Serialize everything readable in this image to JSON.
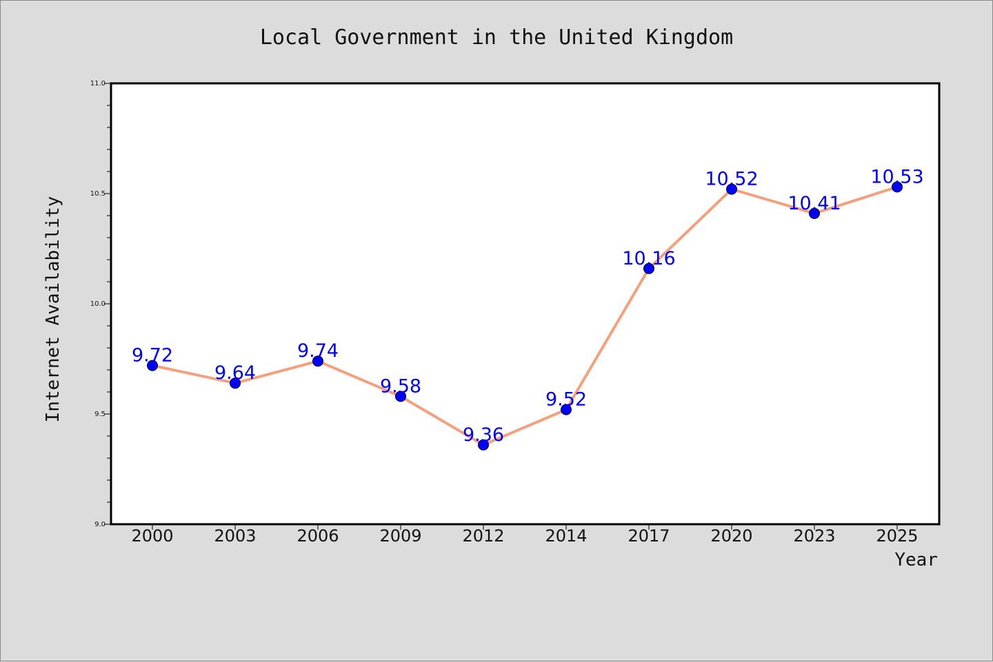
{
  "chart_data": {
    "type": "line",
    "title": "Local Government in the United Kingdom",
    "xlabel": "Year",
    "ylabel": "Internet Availability",
    "categories": [
      "2000",
      "2003",
      "2006",
      "2009",
      "2012",
      "2014",
      "2017",
      "2020",
      "2023",
      "2025"
    ],
    "values": [
      9.72,
      9.64,
      9.74,
      9.58,
      9.36,
      9.52,
      10.16,
      10.52,
      10.41,
      10.53
    ],
    "data_labels": [
      "9.72",
      "9.64",
      "9.74",
      "9.58",
      "9.36",
      "9.52",
      "10.16",
      "10.52",
      "10.41",
      "10.53"
    ],
    "ylim": [
      9.0,
      11.0
    ],
    "yticks": [
      "9.0",
      "9.5",
      "10.0",
      "10.5",
      "11.0"
    ],
    "grid": false,
    "legend": "none",
    "line_color": "#f4a07c",
    "marker_color": "#0000ff",
    "label_color": "#0000ff",
    "background_color": "#dcdcdc",
    "plot_background_color": "#ffffff"
  }
}
